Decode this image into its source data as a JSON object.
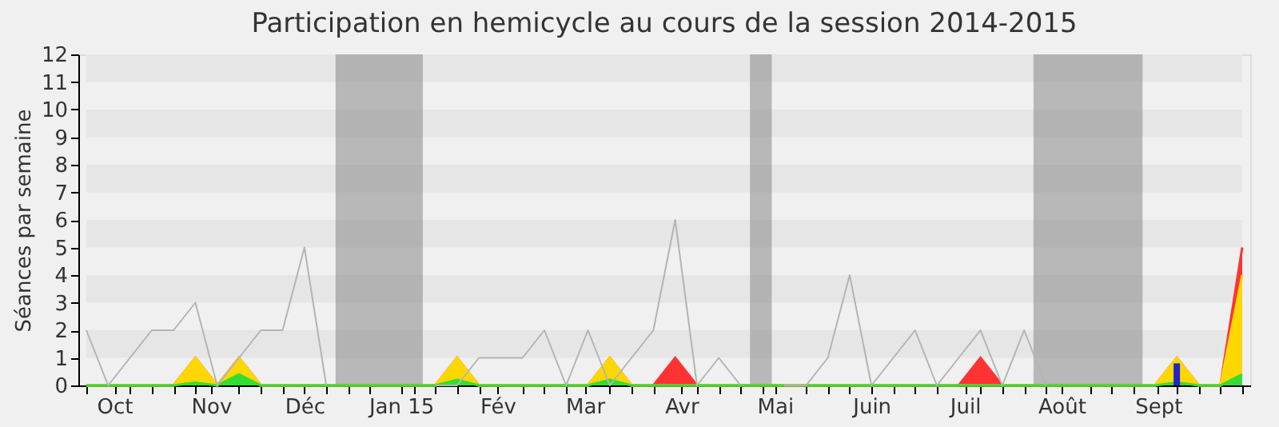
{
  "chart_data": {
    "type": "area",
    "title": "Participation en hemicycle au cours de la session 2014-2015",
    "ylabel": "Séances par semaine",
    "x": [
      "2014-09-22",
      "2014-09-29",
      "2014-10-06",
      "2014-10-13",
      "2014-10-20",
      "2014-10-27",
      "2014-11-03",
      "2014-11-10",
      "2014-11-17",
      "2014-11-24",
      "2014-12-01",
      "2014-12-08",
      "2014-12-15",
      "2014-12-22",
      "2014-12-29",
      "2015-01-05",
      "2015-01-12",
      "2015-01-19",
      "2015-01-26",
      "2015-02-02",
      "2015-02-09",
      "2015-02-16",
      "2015-02-23",
      "2015-03-02",
      "2015-03-09",
      "2015-03-16",
      "2015-03-23",
      "2015-03-30",
      "2015-04-06",
      "2015-04-13",
      "2015-04-20",
      "2015-04-27",
      "2015-05-04",
      "2015-05-11",
      "2015-05-18",
      "2015-05-25",
      "2015-06-01",
      "2015-06-08",
      "2015-06-15",
      "2015-06-22",
      "2015-06-29",
      "2015-07-06",
      "2015-07-13",
      "2015-07-20",
      "2015-07-27",
      "2015-08-03",
      "2015-08-10",
      "2015-08-17",
      "2015-08-24",
      "2015-08-31",
      "2015-09-07",
      "2015-09-14",
      "2015-09-21",
      "2015-09-28"
    ],
    "series": [
      {
        "color": "#ff3333",
        "values": [
          0,
          0,
          0,
          0,
          0,
          1,
          0,
          1,
          0,
          0,
          0,
          0,
          0,
          0,
          0,
          0,
          0,
          1,
          0,
          0,
          0,
          0,
          0,
          0,
          1,
          0,
          0,
          1,
          0,
          0,
          0,
          0,
          0,
          0,
          0,
          0,
          0,
          0,
          0,
          0,
          0,
          1,
          0,
          0,
          0,
          0,
          0,
          0,
          0,
          0,
          1,
          0,
          0,
          5
        ]
      },
      {
        "color": "#ffd700",
        "values": [
          0,
          0,
          0,
          0,
          0,
          1,
          0,
          1,
          0,
          0,
          0,
          0,
          0,
          0,
          0,
          0,
          0,
          1,
          0,
          0,
          0,
          0,
          0,
          0,
          1,
          0,
          0,
          0,
          0,
          0,
          0,
          0,
          0,
          0,
          0,
          0,
          0,
          0,
          0,
          0,
          0,
          0,
          0,
          0,
          0,
          0,
          0,
          0,
          0,
          0,
          1,
          0,
          0,
          4
        ]
      },
      {
        "color": "#33dd33",
        "values": [
          0,
          0,
          0,
          0,
          0,
          0.1,
          0,
          0.4,
          0,
          0,
          0,
          0,
          0,
          0,
          0,
          0,
          0,
          0.2,
          0,
          0,
          0,
          0,
          0,
          0,
          0.2,
          0,
          0,
          0,
          0,
          0,
          0,
          0,
          0,
          0,
          0,
          0,
          0,
          0,
          0,
          0,
          0,
          0,
          0,
          0,
          0,
          0,
          0,
          0,
          0,
          0,
          0.1,
          0,
          0,
          0.4
        ]
      },
      {
        "type": "line",
        "color": "#b4b4b4",
        "values": [
          2,
          0,
          1,
          2,
          2,
          3,
          0,
          1,
          2,
          2,
          5,
          0,
          null,
          null,
          null,
          null,
          0,
          0,
          1,
          1,
          1,
          2,
          0,
          2,
          0,
          1,
          2,
          6,
          0,
          1,
          0,
          null,
          0,
          0,
          1,
          4,
          0,
          1,
          2,
          0,
          1,
          2,
          0,
          2,
          0,
          null,
          null,
          null,
          null,
          null,
          null,
          null,
          null,
          null
        ]
      },
      {
        "type": "bar",
        "color": "#2222cc",
        "values": [
          null,
          null,
          null,
          null,
          null,
          null,
          null,
          null,
          null,
          null,
          null,
          null,
          null,
          null,
          null,
          null,
          null,
          null,
          null,
          null,
          null,
          null,
          null,
          null,
          null,
          null,
          null,
          null,
          null,
          null,
          null,
          null,
          null,
          null,
          null,
          null,
          null,
          null,
          null,
          null,
          null,
          null,
          null,
          null,
          null,
          null,
          null,
          null,
          null,
          null,
          0.8,
          null,
          null,
          null
        ]
      }
    ],
    "xlim": [
      "2014-09-22",
      "2015-09-28"
    ],
    "ylim": [
      0,
      12
    ],
    "yticks": [
      0,
      1,
      2,
      3,
      4,
      5,
      6,
      7,
      8,
      9,
      10,
      11,
      12
    ],
    "xticks": [
      {
        "value": "2014-09-22",
        "label": null
      },
      {
        "value": "2014-10-01",
        "label": "Oct"
      },
      {
        "value": "2014-10-06",
        "label": null
      },
      {
        "value": "2014-10-13",
        "label": null
      },
      {
        "value": "2014-10-20",
        "label": null
      },
      {
        "value": "2014-10-27",
        "label": null
      },
      {
        "value": "2014-11-01",
        "label": "Nov"
      },
      {
        "value": "2014-11-10",
        "label": null
      },
      {
        "value": "2014-11-17",
        "label": null
      },
      {
        "value": "2014-11-24",
        "label": null
      },
      {
        "value": "2014-12-01",
        "label": "Déc"
      },
      {
        "value": "2014-12-08",
        "label": null
      },
      {
        "value": "2014-12-15",
        "label": null
      },
      {
        "value": "2014-12-22",
        "label": null
      },
      {
        "value": "2015-01-01",
        "label": "Jan 15"
      },
      {
        "value": "2015-01-05",
        "label": null
      },
      {
        "value": "2015-01-12",
        "label": null
      },
      {
        "value": "2015-01-19",
        "label": null
      },
      {
        "value": "2015-01-26",
        "label": null
      },
      {
        "value": "2015-02-01",
        "label": "Fév"
      },
      {
        "value": "2015-02-09",
        "label": null
      },
      {
        "value": "2015-02-16",
        "label": null
      },
      {
        "value": "2015-02-23",
        "label": null
      },
      {
        "value": "2015-03-01",
        "label": "Mar"
      },
      {
        "value": "2015-03-09",
        "label": null
      },
      {
        "value": "2015-03-16",
        "label": null
      },
      {
        "value": "2015-03-23",
        "label": null
      },
      {
        "value": "2015-04-01",
        "label": "Avr"
      },
      {
        "value": "2015-04-06",
        "label": null
      },
      {
        "value": "2015-04-13",
        "label": null
      },
      {
        "value": "2015-04-20",
        "label": null
      },
      {
        "value": "2015-04-27",
        "label": null
      },
      {
        "value": "2015-05-01",
        "label": "Mai"
      },
      {
        "value": "2015-05-11",
        "label": null
      },
      {
        "value": "2015-05-18",
        "label": null
      },
      {
        "value": "2015-05-25",
        "label": null
      },
      {
        "value": "2015-06-01",
        "label": "Juin"
      },
      {
        "value": "2015-06-08",
        "label": null
      },
      {
        "value": "2015-06-15",
        "label": null
      },
      {
        "value": "2015-06-22",
        "label": null
      },
      {
        "value": "2015-07-01",
        "label": "Juil"
      },
      {
        "value": "2015-07-06",
        "label": null
      },
      {
        "value": "2015-07-13",
        "label": null
      },
      {
        "value": "2015-07-20",
        "label": null
      },
      {
        "value": "2015-07-27",
        "label": null
      },
      {
        "value": "2015-08-01",
        "label": "Août"
      },
      {
        "value": "2015-08-10",
        "label": null
      },
      {
        "value": "2015-08-17",
        "label": null
      },
      {
        "value": "2015-08-24",
        "label": null
      },
      {
        "value": "2015-09-01",
        "label": "Sept"
      },
      {
        "value": "2015-09-07",
        "label": null
      },
      {
        "value": "2015-09-14",
        "label": null
      },
      {
        "value": "2015-09-21",
        "label": null
      },
      {
        "value": "2015-09-28",
        "label": null
      }
    ],
    "bands": [
      {
        "axis": "y",
        "from": 1,
        "to": 2,
        "color": "#e6e6e6"
      },
      {
        "axis": "y",
        "from": 3,
        "to": 4,
        "color": "#e6e6e6"
      },
      {
        "axis": "y",
        "from": 5,
        "to": 6,
        "color": "#e6e6e6"
      },
      {
        "axis": "y",
        "from": 7,
        "to": 8,
        "color": "#e6e6e6"
      },
      {
        "axis": "y",
        "from": 9,
        "to": 10,
        "color": "#e6e6e6"
      },
      {
        "axis": "y",
        "from": 11,
        "to": 12,
        "color": "#e6e6e6"
      },
      {
        "axis": "x",
        "from": "2014-12-11",
        "to": "2015-01-08",
        "color": "#808080"
      },
      {
        "axis": "x",
        "from": "2015-04-23",
        "to": "2015-04-30",
        "color": "#808080"
      },
      {
        "axis": "x",
        "from": "2015-07-23",
        "to": "2015-08-27",
        "color": "#808080"
      }
    ],
    "grid": false
  }
}
